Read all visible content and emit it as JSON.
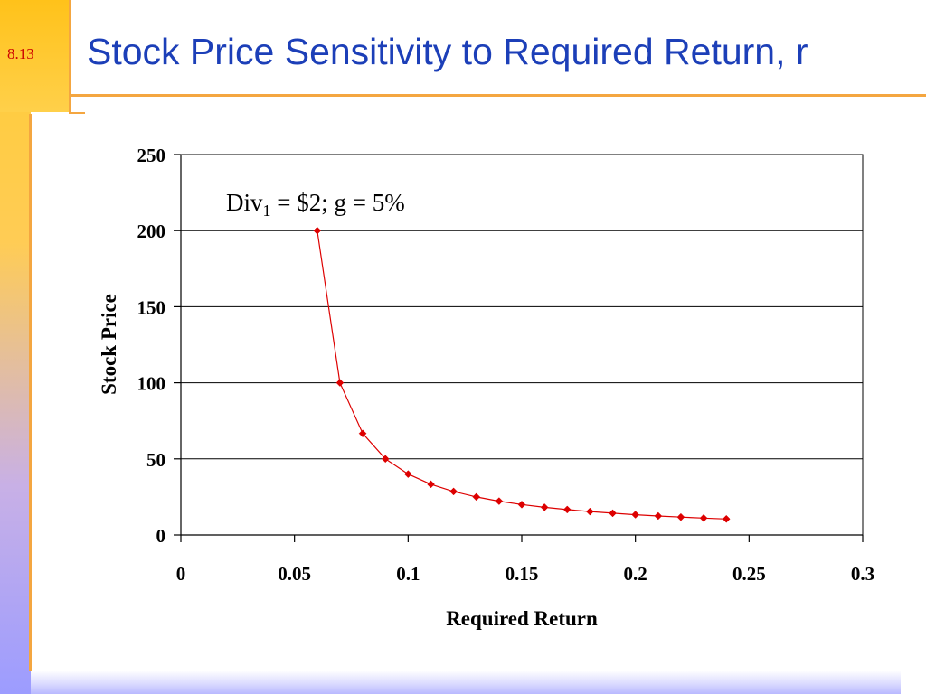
{
  "slide_number": "8.13",
  "title": "Stock Price Sensitivity to Required Return, r",
  "colors": {
    "title": "#1c3fb8",
    "slide_number": "#cc0000",
    "series": "#dd0000",
    "accent_line": "#f4a640"
  },
  "chart_data": {
    "type": "scatter",
    "xlabel": "Required Return",
    "ylabel": "Stock Price",
    "xlim": [
      0,
      0.3
    ],
    "ylim": [
      0,
      250
    ],
    "x_ticks": [
      0,
      0.05,
      0.1,
      0.15,
      0.2,
      0.25,
      0.3
    ],
    "x_tick_labels": [
      "0",
      "0.05",
      "0.1",
      "0.15",
      "0.2",
      "0.25",
      "0.3"
    ],
    "y_ticks": [
      0,
      50,
      100,
      150,
      200,
      250
    ],
    "y_tick_labels": [
      "0",
      "50",
      "100",
      "150",
      "200",
      "250"
    ],
    "grid": "horizontal",
    "annotation": {
      "main": "Div",
      "sub": "1",
      "rest": " = $2; g = 5%"
    },
    "series": [
      {
        "x": [
          0.06,
          0.07,
          0.08,
          0.09,
          0.1,
          0.11,
          0.12,
          0.13,
          0.14,
          0.15,
          0.16,
          0.17,
          0.18,
          0.19,
          0.2,
          0.21,
          0.22,
          0.23,
          0.24
        ],
        "y": [
          200,
          100,
          66.67,
          50,
          40,
          33.33,
          28.57,
          25,
          22.22,
          20,
          18.18,
          16.67,
          15.38,
          14.29,
          13.33,
          12.5,
          11.76,
          11.11,
          10.53
        ]
      }
    ]
  }
}
